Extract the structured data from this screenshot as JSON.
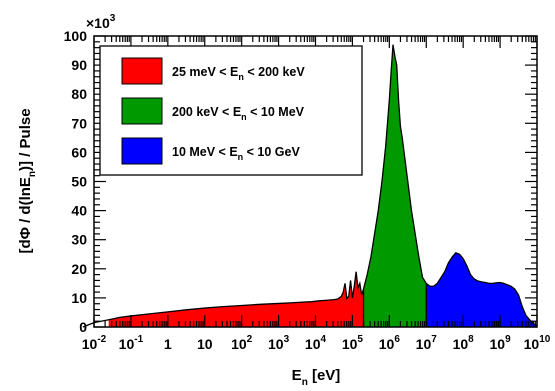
{
  "chart_data": {
    "type": "area",
    "xlabel_main": "E",
    "xlabel_sub": "n",
    "xlabel_unit": "[eV]",
    "ylabel_parts": [
      "[dΦ / d(lnE",
      "n",
      ")] / Pulse"
    ],
    "y_multiplier": "×10",
    "y_multiplier_exp": "3",
    "x_scale": "log",
    "xlim": [
      0.01,
      10000000000
    ],
    "ylim": [
      0,
      100
    ],
    "y_ticks": [
      "0",
      "10",
      "20",
      "30",
      "40",
      "50",
      "60",
      "70",
      "80",
      "90",
      "100"
    ],
    "x_ticks": [
      {
        "base": "10",
        "exp": "-2"
      },
      {
        "base": "10",
        "exp": "-1"
      },
      {
        "base": "1",
        "exp": ""
      },
      {
        "base": "10",
        "exp": ""
      },
      {
        "base": "10",
        "exp": "2"
      },
      {
        "base": "10",
        "exp": "3"
      },
      {
        "base": "10",
        "exp": "4"
      },
      {
        "base": "10",
        "exp": "5"
      },
      {
        "base": "10",
        "exp": "6"
      },
      {
        "base": "10",
        "exp": "7"
      },
      {
        "base": "10",
        "exp": "8"
      },
      {
        "base": "10",
        "exp": "9"
      },
      {
        "base": "10",
        "exp": "10"
      }
    ],
    "series": [
      {
        "name": "25 meV < E_n < 200 keV",
        "label_parts": [
          "25 meV < E",
          "n",
          " < 200 keV"
        ],
        "range": [
          0.025,
          200000
        ],
        "color": "#ff0000"
      },
      {
        "name": "200 keV < E_n < 10 MeV",
        "label_parts": [
          "200 keV < E",
          "n",
          " < 10 MeV"
        ],
        "range": [
          200000,
          10000000
        ],
        "color": "#009900"
      },
      {
        "name": "10 MeV < E_n < 10 GeV",
        "label_parts": [
          "10 MeV < E",
          "n",
          " < 10 GeV"
        ],
        "range": [
          10000000,
          10000000000
        ],
        "color": "#0000ff"
      }
    ],
    "spectrum": {
      "log10_E": [
        -2.3,
        -2.0,
        -1.6,
        -1.3,
        -1.0,
        -0.5,
        0.0,
        0.5,
        1.0,
        1.5,
        2.0,
        2.5,
        3.0,
        3.3,
        3.6,
        3.9,
        4.1,
        4.3,
        4.5,
        4.6,
        4.7,
        4.75,
        4.8,
        4.85,
        4.9,
        4.95,
        5.0,
        5.05,
        5.1,
        5.15,
        5.2,
        5.25,
        5.3,
        5.4,
        5.5,
        5.6,
        5.7,
        5.8,
        5.9,
        6.0,
        6.05,
        6.1,
        6.15,
        6.2,
        6.25,
        6.3,
        6.35,
        6.4,
        6.5,
        6.6,
        6.7,
        6.8,
        6.9,
        7.0,
        7.1,
        7.2,
        7.3,
        7.4,
        7.5,
        7.6,
        7.7,
        7.8,
        7.9,
        8.0,
        8.1,
        8.2,
        8.3,
        8.4,
        8.5,
        8.6,
        8.7,
        8.8,
        8.9,
        9.0,
        9.1,
        9.2,
        9.3,
        9.4,
        9.5,
        9.6,
        9.7,
        9.8,
        9.9,
        10.0
      ],
      "flux_1e3": [
        0,
        1.5,
        2.5,
        3.3,
        3.8,
        4.5,
        5.2,
        5.9,
        6.5,
        7.0,
        7.4,
        7.8,
        8.1,
        8.3,
        8.5,
        8.7,
        9.0,
        9.2,
        9.4,
        9.6,
        10.5,
        12,
        15,
        9.8,
        10.5,
        16,
        10,
        14,
        19,
        13.5,
        15,
        11,
        13,
        18,
        24,
        32,
        40,
        50,
        62,
        78,
        88,
        97,
        93,
        90,
        78,
        69,
        65,
        60,
        50,
        40,
        32,
        24,
        17,
        15,
        14,
        14,
        15,
        17,
        19,
        22,
        24,
        25.5,
        25,
        23.5,
        21,
        18,
        16.5,
        15.8,
        15.5,
        15.3,
        15,
        15,
        15.2,
        15.3,
        15,
        14.5,
        14,
        13,
        11,
        7,
        4,
        2.5,
        1.2,
        0.5
      ]
    }
  }
}
